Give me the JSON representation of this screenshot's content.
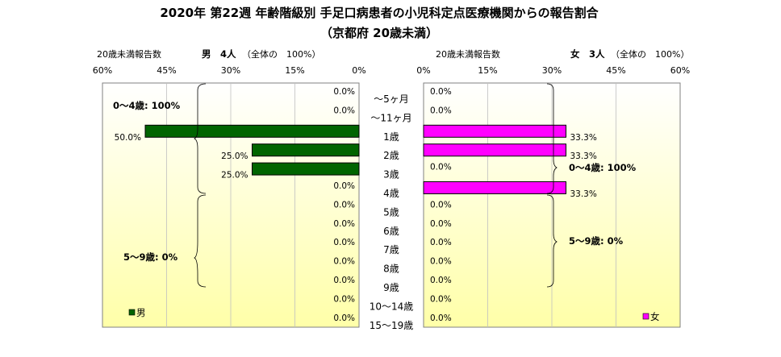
{
  "title": "2020年 第22週 年齢階級別 手足口病患者の小児科定点医療機関からの報告割合",
  "subtitle": "（京都府 20歳未満）",
  "colors": {
    "male_bar": "#006400",
    "female_bar": "#ff00ff",
    "plot_top": "#ffffff",
    "plot_bottom": "#ffffa8",
    "border": "#808080",
    "gridline": "#c0c0c0"
  },
  "chart_data": [
    {
      "type": "bar",
      "orientation": "horizontal",
      "direction": "right-to-left",
      "header_left": "20歳未満報告数",
      "header_main": "男　4人",
      "header_sub": "（全体の　100%）",
      "xlim": [
        0,
        60
      ],
      "tick_labels": [
        "60%",
        "45%",
        "30%",
        "15%",
        "0%"
      ],
      "categories": [
        "～5ヶ月",
        "～11ヶ月",
        "1歳",
        "2歳",
        "3歳",
        "4歳",
        "5歳",
        "6歳",
        "7歳",
        "8歳",
        "9歳",
        "10～14歳",
        "15～19歳"
      ],
      "series": [
        {
          "name": "男",
          "values": [
            0,
            0,
            50,
            25,
            25,
            0,
            0,
            0,
            0,
            0,
            0,
            0,
            0
          ],
          "labels": [
            "0.0%",
            "0.0%",
            "50.0%",
            "25.0%",
            "25.0%",
            "0.0%",
            "0.0%",
            "0.0%",
            "0.0%",
            "0.0%",
            "0.0%",
            "0.0%",
            "0.0%"
          ]
        }
      ],
      "annotations": [
        "0～4歳: 100%",
        "5～9歳: 0%"
      ],
      "legend": "bottom-left",
      "grid": true
    },
    {
      "type": "bar",
      "orientation": "horizontal",
      "direction": "left-to-right",
      "header_left": "20歳未満報告数",
      "header_main": "女　3人",
      "header_sub": "（全体の　100%）",
      "xlim": [
        0,
        60
      ],
      "tick_labels": [
        "0%",
        "15%",
        "30%",
        "45%",
        "60%"
      ],
      "categories": [
        "～5ヶ月",
        "～11ヶ月",
        "1歳",
        "2歳",
        "3歳",
        "4歳",
        "5歳",
        "6歳",
        "7歳",
        "8歳",
        "9歳",
        "10～14歳",
        "15～19歳"
      ],
      "series": [
        {
          "name": "女",
          "values": [
            0,
            0,
            33.3,
            33.3,
            0,
            33.3,
            0,
            0,
            0,
            0,
            0,
            0,
            0
          ],
          "labels": [
            "0.0%",
            "0.0%",
            "33.3%",
            "33.3%",
            "0.0%",
            "33.3%",
            "0.0%",
            "0.0%",
            "0.0%",
            "0.0%",
            "0.0%",
            "0.0%",
            "0.0%"
          ]
        }
      ],
      "annotations": [
        "0～4歳: 100%",
        "5～9歳: 0%"
      ],
      "legend": "bottom-right",
      "grid": true
    }
  ]
}
